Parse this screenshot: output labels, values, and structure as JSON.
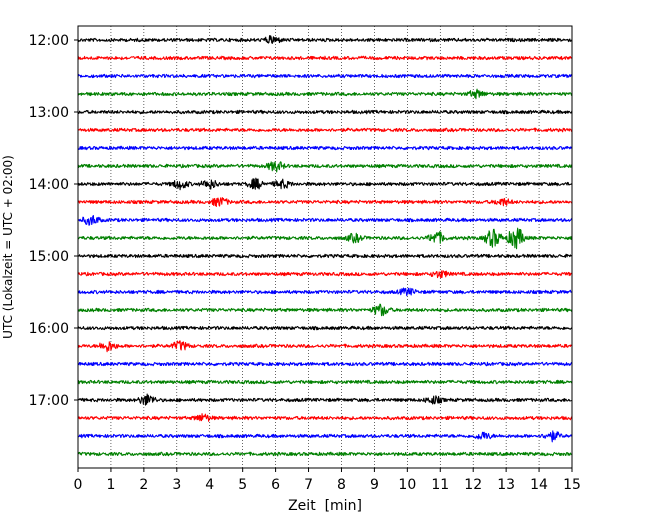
{
  "chart_data": {
    "type": "line",
    "title": "",
    "xlabel": "Zeit  [min]",
    "ylabel": "UTC (Lokalzeit = UTC + 02:00)",
    "xlim": [
      0,
      15
    ],
    "x_ticks": [
      0,
      1,
      2,
      3,
      4,
      5,
      6,
      7,
      8,
      9,
      10,
      11,
      12,
      13,
      14,
      15
    ],
    "x_tick_labels": [
      "0",
      "1",
      "2",
      "3",
      "4",
      "5",
      "6",
      "7",
      "8",
      "9",
      "10",
      "11",
      "12",
      "13",
      "14",
      "15"
    ],
    "y_tick_labels": [
      "12:00",
      "13:00",
      "14:00",
      "15:00",
      "16:00",
      "17:00"
    ],
    "trace_minutes_per_line": 15,
    "grid": "vertical dotted at each minute",
    "color_cycle": [
      "#000000",
      "#ff0000",
      "#0000ff",
      "#008000"
    ],
    "traces": [
      {
        "start": "12:00",
        "color": "#000000",
        "events": [
          {
            "t": 5.9,
            "amp": 1.6
          }
        ]
      },
      {
        "start": "12:15",
        "color": "#ff0000",
        "events": []
      },
      {
        "start": "12:30",
        "color": "#0000ff",
        "events": []
      },
      {
        "start": "12:45",
        "color": "#008000",
        "events": [
          {
            "t": 12.1,
            "amp": 1.6
          }
        ]
      },
      {
        "start": "13:00",
        "color": "#000000",
        "events": []
      },
      {
        "start": "13:15",
        "color": "#ff0000",
        "events": []
      },
      {
        "start": "13:30",
        "color": "#0000ff",
        "events": []
      },
      {
        "start": "13:45",
        "color": "#008000",
        "events": [
          {
            "t": 6.0,
            "amp": 2.2
          }
        ]
      },
      {
        "start": "14:00",
        "color": "#000000",
        "events": [
          {
            "t": 3.1,
            "amp": 2.0
          },
          {
            "t": 4.0,
            "amp": 2.0
          },
          {
            "t": 5.4,
            "amp": 2.2
          },
          {
            "t": 6.2,
            "amp": 1.8
          }
        ]
      },
      {
        "start": "14:15",
        "color": "#ff0000",
        "events": [
          {
            "t": 4.3,
            "amp": 2.0
          },
          {
            "t": 12.9,
            "amp": 1.5
          }
        ]
      },
      {
        "start": "14:30",
        "color": "#0000ff",
        "events": [
          {
            "t": 0.4,
            "amp": 2.2
          }
        ]
      },
      {
        "start": "14:45",
        "color": "#008000",
        "events": [
          {
            "t": 8.4,
            "amp": 1.8
          },
          {
            "t": 10.9,
            "amp": 2.8
          },
          {
            "t": 12.6,
            "amp": 4.0
          },
          {
            "t": 13.3,
            "amp": 5.0
          }
        ]
      },
      {
        "start": "15:00",
        "color": "#000000",
        "events": []
      },
      {
        "start": "15:15",
        "color": "#ff0000",
        "events": [
          {
            "t": 11.0,
            "amp": 1.5
          }
        ]
      },
      {
        "start": "15:30",
        "color": "#0000ff",
        "events": [
          {
            "t": 10.0,
            "amp": 1.5
          }
        ]
      },
      {
        "start": "15:45",
        "color": "#008000",
        "events": [
          {
            "t": 9.2,
            "amp": 2.6
          }
        ]
      },
      {
        "start": "16:00",
        "color": "#000000",
        "events": []
      },
      {
        "start": "16:15",
        "color": "#ff0000",
        "events": [
          {
            "t": 0.9,
            "amp": 2.2
          },
          {
            "t": 3.1,
            "amp": 2.0
          }
        ]
      },
      {
        "start": "16:30",
        "color": "#0000ff",
        "events": []
      },
      {
        "start": "16:45",
        "color": "#008000",
        "events": []
      },
      {
        "start": "17:00",
        "color": "#000000",
        "events": [
          {
            "t": 2.1,
            "amp": 2.4
          },
          {
            "t": 10.8,
            "amp": 1.6
          }
        ]
      },
      {
        "start": "17:15",
        "color": "#ff0000",
        "events": [
          {
            "t": 3.8,
            "amp": 1.6
          }
        ]
      },
      {
        "start": "17:30",
        "color": "#0000ff",
        "events": [
          {
            "t": 12.3,
            "amp": 1.6
          },
          {
            "t": 14.4,
            "amp": 2.0
          }
        ]
      },
      {
        "start": "17:45",
        "color": "#008000",
        "events": []
      }
    ]
  }
}
